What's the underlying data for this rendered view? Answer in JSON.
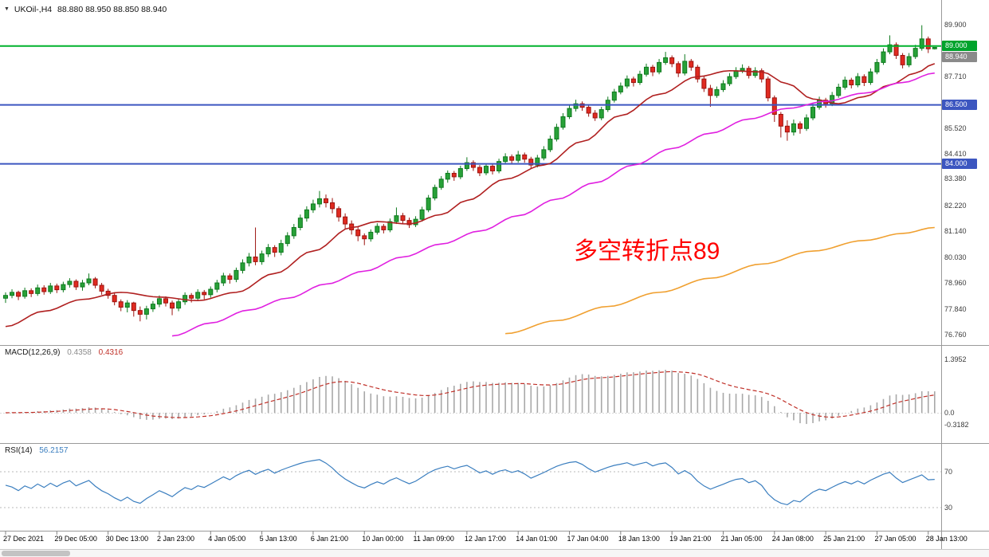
{
  "header": {
    "symbol": "UKOil-,H4",
    "ohlc_text": "88.880 88.950 88.850 88.940"
  },
  "icons": {
    "chart_menu": "▼"
  },
  "annotation": {
    "text": "多空转折点89",
    "color": "#ff0000"
  },
  "colors": {
    "bull_fill": "#28a138",
    "bull_stroke": "#0e7a1e",
    "bear_fill": "#e02a20",
    "bear_stroke": "#9c1410",
    "macd_hist": "#a8a8a8",
    "macd_signal": "#c03028",
    "rsi_line": "#3a7ebf",
    "level_line": "#b8b8b8",
    "green_level": "#00b22d",
    "blue_level": "#3c56c0"
  },
  "price_axis": {
    "ticks": [
      {
        "text": "89.900",
        "price": 89.9
      },
      {
        "text": "87.710",
        "price": 87.71
      },
      {
        "text": "85.520",
        "price": 85.52
      },
      {
        "text": "84.410",
        "price": 84.41
      },
      {
        "text": "83.380",
        "price": 83.38
      },
      {
        "text": "82.220",
        "price": 82.22
      },
      {
        "text": "81.140",
        "price": 81.14
      },
      {
        "text": "80.030",
        "price": 80.03
      },
      {
        "text": "78.960",
        "price": 78.96
      },
      {
        "text": "77.840",
        "price": 77.84
      },
      {
        "text": "76.760",
        "price": 76.76
      }
    ],
    "line_labels": [
      {
        "text": "89.000",
        "price": 89.0,
        "bg": "#00a32c"
      },
      {
        "text": "88.940",
        "price": 88.94,
        "bg": "#8a8a8a"
      },
      {
        "text": "86.500",
        "price": 86.5,
        "bg": "#3c56c0"
      },
      {
        "text": "84.000",
        "price": 84.0,
        "bg": "#3c56c0"
      }
    ]
  },
  "hlines": [
    {
      "price": 89.0,
      "color": "#00b22d",
      "width": 2
    },
    {
      "price": 86.5,
      "color": "#3c56c0",
      "width": 2
    },
    {
      "price": 84.0,
      "color": "#3c56c0",
      "width": 2
    }
  ],
  "chart_data": {
    "type": "candlestick",
    "symbol": "UKOil-",
    "timeframe": "H4",
    "y_range": [
      76.31,
      90.95
    ],
    "x_labels": [
      "27 Dec 2021",
      "29 Dec 05:00",
      "30 Dec 13:00",
      "2 Jan 23:00",
      "4 Jan 05:00",
      "5 Jan 13:00",
      "6 Jan 21:00",
      "10 Jan 00:00",
      "11 Jan 09:00",
      "12 Jan 17:00",
      "14 Jan 01:00",
      "17 Jan 04:00",
      "18 Jan 13:00",
      "19 Jan 21:00",
      "21 Jan 05:00",
      "24 Jan 08:00",
      "25 Jan 21:00",
      "27 Jan 05:00",
      "28 Jan 13:00"
    ],
    "candles": [
      [
        78.3,
        78.55,
        78.1,
        78.42
      ],
      [
        78.42,
        78.68,
        78.3,
        78.55
      ],
      [
        78.55,
        78.62,
        78.22,
        78.38
      ],
      [
        78.38,
        78.75,
        78.28,
        78.62
      ],
      [
        78.62,
        78.72,
        78.35,
        78.5
      ],
      [
        78.5,
        78.88,
        78.4,
        78.74
      ],
      [
        78.74,
        78.85,
        78.45,
        78.58
      ],
      [
        78.58,
        78.95,
        78.48,
        78.82
      ],
      [
        78.82,
        78.92,
        78.52,
        78.66
      ],
      [
        78.66,
        79.0,
        78.55,
        78.88
      ],
      [
        78.88,
        79.15,
        78.75,
        79.02
      ],
      [
        79.02,
        79.1,
        78.65,
        78.78
      ],
      [
        78.78,
        79.08,
        78.62,
        78.95
      ],
      [
        78.95,
        79.35,
        78.85,
        79.12
      ],
      [
        79.12,
        79.2,
        78.72,
        78.85
      ],
      [
        78.85,
        78.95,
        78.45,
        78.6
      ],
      [
        78.6,
        78.7,
        78.28,
        78.42
      ],
      [
        78.42,
        78.55,
        78.0,
        78.15
      ],
      [
        78.15,
        78.25,
        77.75,
        77.92
      ],
      [
        77.92,
        78.22,
        77.7,
        78.1
      ],
      [
        78.1,
        78.15,
        77.52,
        77.78
      ],
      [
        77.78,
        77.95,
        77.32,
        77.62
      ],
      [
        77.62,
        77.98,
        77.4,
        77.85
      ],
      [
        77.85,
        78.18,
        77.72,
        78.05
      ],
      [
        78.05,
        78.42,
        77.92,
        78.28
      ],
      [
        78.28,
        78.38,
        77.95,
        78.1
      ],
      [
        78.1,
        78.2,
        77.58,
        77.88
      ],
      [
        77.88,
        78.28,
        77.75,
        78.15
      ],
      [
        78.15,
        78.55,
        78.02,
        78.42
      ],
      [
        78.42,
        78.52,
        78.12,
        78.3
      ],
      [
        78.3,
        78.68,
        78.18,
        78.55
      ],
      [
        78.55,
        78.65,
        78.25,
        78.45
      ],
      [
        78.45,
        78.8,
        78.32,
        78.68
      ],
      [
        78.68,
        79.08,
        78.55,
        78.95
      ],
      [
        78.95,
        79.38,
        78.82,
        79.25
      ],
      [
        79.25,
        79.35,
        78.92,
        79.1
      ],
      [
        79.1,
        79.6,
        78.98,
        79.48
      ],
      [
        79.48,
        79.95,
        79.35,
        79.8
      ],
      [
        79.8,
        80.22,
        79.65,
        80.05
      ],
      [
        80.05,
        81.3,
        79.7,
        79.85
      ],
      [
        79.85,
        80.32,
        79.72,
        80.18
      ],
      [
        80.18,
        80.6,
        80.05,
        80.45
      ],
      [
        80.45,
        80.55,
        80.05,
        80.25
      ],
      [
        80.25,
        80.78,
        80.12,
        80.62
      ],
      [
        80.62,
        81.1,
        80.5,
        80.95
      ],
      [
        80.95,
        81.45,
        80.82,
        81.3
      ],
      [
        81.3,
        81.85,
        81.18,
        81.7
      ],
      [
        81.7,
        82.2,
        81.55,
        82.05
      ],
      [
        82.05,
        82.48,
        81.92,
        82.3
      ],
      [
        82.3,
        82.85,
        82.15,
        82.52
      ],
      [
        82.52,
        82.7,
        82.15,
        82.35
      ],
      [
        82.35,
        82.55,
        81.9,
        82.1
      ],
      [
        82.1,
        82.2,
        81.55,
        81.75
      ],
      [
        81.75,
        81.9,
        81.25,
        81.45
      ],
      [
        81.45,
        81.6,
        81.0,
        81.2
      ],
      [
        81.2,
        81.32,
        80.72,
        80.95
      ],
      [
        80.95,
        81.05,
        80.55,
        80.82
      ],
      [
        80.82,
        81.22,
        80.7,
        81.1
      ],
      [
        81.1,
        81.48,
        81.0,
        81.35
      ],
      [
        81.35,
        81.45,
        81.05,
        81.2
      ],
      [
        81.2,
        81.68,
        81.1,
        81.55
      ],
      [
        81.55,
        82.15,
        81.45,
        81.8
      ],
      [
        81.8,
        81.92,
        81.45,
        81.6
      ],
      [
        81.6,
        81.72,
        81.28,
        81.42
      ],
      [
        81.42,
        81.78,
        81.32,
        81.65
      ],
      [
        81.65,
        82.18,
        81.55,
        82.05
      ],
      [
        82.05,
        82.68,
        81.95,
        82.55
      ],
      [
        82.55,
        83.12,
        82.45,
        83.0
      ],
      [
        83.0,
        83.48,
        82.9,
        83.35
      ],
      [
        83.35,
        83.72,
        83.2,
        83.6
      ],
      [
        83.6,
        83.7,
        83.28,
        83.45
      ],
      [
        83.45,
        83.92,
        83.35,
        83.8
      ],
      [
        83.8,
        84.28,
        83.7,
        84.05
      ],
      [
        84.05,
        84.15,
        83.7,
        83.85
      ],
      [
        83.85,
        83.95,
        83.48,
        83.62
      ],
      [
        83.62,
        84.02,
        83.52,
        83.9
      ],
      [
        83.9,
        84.0,
        83.55,
        83.7
      ],
      [
        83.7,
        84.22,
        83.6,
        84.1
      ],
      [
        84.1,
        84.45,
        84.0,
        84.3
      ],
      [
        84.3,
        84.4,
        83.98,
        84.15
      ],
      [
        84.15,
        84.55,
        84.05,
        84.38
      ],
      [
        84.38,
        84.48,
        84.05,
        84.2
      ],
      [
        84.2,
        84.3,
        83.78,
        83.95
      ],
      [
        83.95,
        84.38,
        83.85,
        84.25
      ],
      [
        84.25,
        84.75,
        84.15,
        84.6
      ],
      [
        84.6,
        85.2,
        84.5,
        85.05
      ],
      [
        85.05,
        85.7,
        84.95,
        85.55
      ],
      [
        85.55,
        86.15,
        85.45,
        86.0
      ],
      [
        86.0,
        86.5,
        85.9,
        86.35
      ],
      [
        86.35,
        86.72,
        86.22,
        86.55
      ],
      [
        86.55,
        86.65,
        86.25,
        86.4
      ],
      [
        86.4,
        86.52,
        86.0,
        86.15
      ],
      [
        86.15,
        86.28,
        85.82,
        85.95
      ],
      [
        85.95,
        86.42,
        85.85,
        86.3
      ],
      [
        86.3,
        86.85,
        86.2,
        86.7
      ],
      [
        86.7,
        87.18,
        86.6,
        87.05
      ],
      [
        87.05,
        87.45,
        86.95,
        87.3
      ],
      [
        87.3,
        87.75,
        87.2,
        87.6
      ],
      [
        87.6,
        87.7,
        87.28,
        87.45
      ],
      [
        87.45,
        87.95,
        87.35,
        87.8
      ],
      [
        87.8,
        88.25,
        87.7,
        88.1
      ],
      [
        88.1,
        88.2,
        87.72,
        87.9
      ],
      [
        87.9,
        88.45,
        87.8,
        88.3
      ],
      [
        88.3,
        88.75,
        88.2,
        88.5
      ],
      [
        88.5,
        88.6,
        88.1,
        88.25
      ],
      [
        88.25,
        88.35,
        87.68,
        87.85
      ],
      [
        87.85,
        88.65,
        87.75,
        88.35
      ],
      [
        88.35,
        88.45,
        87.95,
        88.1
      ],
      [
        88.1,
        88.2,
        87.45,
        87.6
      ],
      [
        87.6,
        87.75,
        87.05,
        87.2
      ],
      [
        87.2,
        87.35,
        86.42,
        86.9
      ],
      [
        86.9,
        87.28,
        86.8,
        87.15
      ],
      [
        87.15,
        87.55,
        87.05,
        87.4
      ],
      [
        87.4,
        87.85,
        87.3,
        87.7
      ],
      [
        87.7,
        88.1,
        87.6,
        87.95
      ],
      [
        87.95,
        88.22,
        87.85,
        88.05
      ],
      [
        88.05,
        88.15,
        87.62,
        87.75
      ],
      [
        87.75,
        88.1,
        87.65,
        87.95
      ],
      [
        87.95,
        88.05,
        87.45,
        87.6
      ],
      [
        87.6,
        87.7,
        86.65,
        86.8
      ],
      [
        86.8,
        86.9,
        85.78,
        86.1
      ],
      [
        86.1,
        86.2,
        85.12,
        85.6
      ],
      [
        85.6,
        85.85,
        84.98,
        85.35
      ],
      [
        85.35,
        85.88,
        85.2,
        85.7
      ],
      [
        85.7,
        85.8,
        85.28,
        85.5
      ],
      [
        85.5,
        86.1,
        85.4,
        85.95
      ],
      [
        85.95,
        86.55,
        85.85,
        86.4
      ],
      [
        86.4,
        86.85,
        86.3,
        86.7
      ],
      [
        86.7,
        86.8,
        86.38,
        86.55
      ],
      [
        86.55,
        87.05,
        86.45,
        86.9
      ],
      [
        86.9,
        87.4,
        86.8,
        87.25
      ],
      [
        87.25,
        87.7,
        87.15,
        87.55
      ],
      [
        87.55,
        87.65,
        87.2,
        87.35
      ],
      [
        87.35,
        87.85,
        87.25,
        87.7
      ],
      [
        87.7,
        87.8,
        87.3,
        87.45
      ],
      [
        87.45,
        88.05,
        87.35,
        87.9
      ],
      [
        87.9,
        88.45,
        87.8,
        88.3
      ],
      [
        88.3,
        88.9,
        88.2,
        88.75
      ],
      [
        88.75,
        89.45,
        88.65,
        89.05
      ],
      [
        89.05,
        89.15,
        88.45,
        88.6
      ],
      [
        88.6,
        88.7,
        88.05,
        88.2
      ],
      [
        88.2,
        88.7,
        88.1,
        88.55
      ],
      [
        88.55,
        89.05,
        88.45,
        88.9
      ],
      [
        88.9,
        89.88,
        88.8,
        89.3
      ],
      [
        89.3,
        89.4,
        88.7,
        88.88
      ],
      [
        88.88,
        88.95,
        88.85,
        88.94
      ]
    ],
    "moving_averages": [
      {
        "name": "fast-ma",
        "color": "#b02020",
        "points": [
          [
            0,
            77.1
          ],
          [
            6,
            77.75
          ],
          [
            12,
            78.25
          ],
          [
            18,
            78.55
          ],
          [
            24,
            78.35
          ],
          [
            30,
            78.2
          ],
          [
            36,
            78.55
          ],
          [
            42,
            79.35
          ],
          [
            48,
            80.3
          ],
          [
            54,
            81.3
          ],
          [
            58,
            81.55
          ],
          [
            63,
            81.45
          ],
          [
            68,
            81.85
          ],
          [
            72,
            82.45
          ],
          [
            78,
            83.35
          ],
          [
            84,
            83.95
          ],
          [
            90,
            84.95
          ],
          [
            96,
            86.05
          ],
          [
            102,
            86.95
          ],
          [
            108,
            87.7
          ],
          [
            113,
            87.95
          ],
          [
            118,
            87.9
          ],
          [
            122,
            87.4
          ],
          [
            126,
            86.75
          ],
          [
            130,
            86.55
          ],
          [
            134,
            86.85
          ],
          [
            138,
            87.35
          ],
          [
            142,
            87.85
          ],
          [
            145,
            88.25
          ]
        ]
      },
      {
        "name": "medium-ma",
        "color": "#e020e0",
        "points": [
          [
            26,
            76.7
          ],
          [
            32,
            77.25
          ],
          [
            38,
            77.8
          ],
          [
            44,
            78.3
          ],
          [
            50,
            78.9
          ],
          [
            56,
            79.45
          ],
          [
            62,
            80.05
          ],
          [
            68,
            80.6
          ],
          [
            74,
            81.15
          ],
          [
            80,
            81.8
          ],
          [
            86,
            82.5
          ],
          [
            92,
            83.2
          ],
          [
            98,
            83.95
          ],
          [
            104,
            84.65
          ],
          [
            110,
            85.3
          ],
          [
            116,
            85.9
          ],
          [
            122,
            86.35
          ],
          [
            128,
            86.65
          ],
          [
            134,
            87.0
          ],
          [
            140,
            87.45
          ],
          [
            145,
            87.85
          ]
        ]
      },
      {
        "name": "slow-ma",
        "color": "#f0a030",
        "points": [
          [
            78,
            76.8
          ],
          [
            86,
            77.35
          ],
          [
            94,
            77.95
          ],
          [
            102,
            78.55
          ],
          [
            110,
            79.15
          ],
          [
            118,
            79.75
          ],
          [
            126,
            80.3
          ],
          [
            134,
            80.75
          ],
          [
            140,
            81.05
          ],
          [
            145,
            81.3
          ]
        ]
      }
    ],
    "indicators": [
      {
        "id": "macd",
        "label": "MACD(12,26,9)",
        "main_value": "0.4358",
        "signal_value": "0.4316",
        "axis_ticks": [
          "1.3952",
          "0.0",
          "-0.3182"
        ]
      },
      {
        "id": "rsi",
        "label": "RSI(14)",
        "value": "56.2157",
        "levels": [
          "70",
          "30"
        ]
      }
    ]
  }
}
